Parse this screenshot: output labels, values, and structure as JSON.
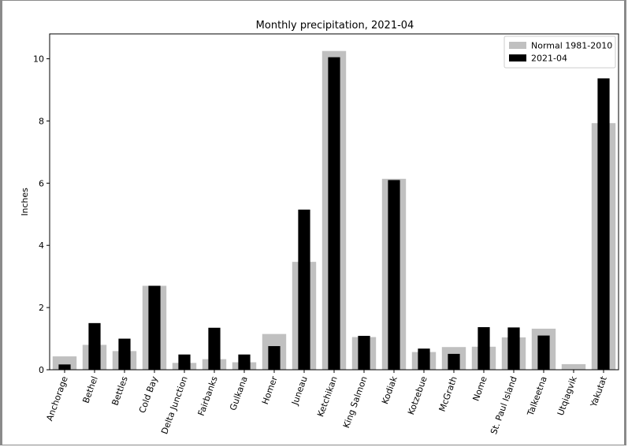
{
  "chart_data": {
    "type": "bar",
    "title": "Monthly precipitation, 2021-04",
    "ylabel": "Inches",
    "xlabel": "",
    "ylim": [
      0,
      10.8
    ],
    "yticks": [
      0,
      2,
      4,
      6,
      8,
      10
    ],
    "legend_position": "top-right",
    "grid": false,
    "categories": [
      "Anchorage",
      "Bethel",
      "Bettles",
      "Cold Bay",
      "Delta Junction",
      "Fairbanks",
      "Gulkana",
      "Homer",
      "Juneau",
      "Ketchikan",
      "King Salmon",
      "Kodiak",
      "Kotzebue",
      "McGrath",
      "Nome",
      "St. Paul Island",
      "Talkeetna",
      "Utqiagvik",
      "Yakutat"
    ],
    "series": [
      {
        "name": "Normal 1981-2010",
        "color": "#c0c0c0",
        "values": [
          0.43,
          0.8,
          0.6,
          2.7,
          0.22,
          0.34,
          0.24,
          1.15,
          3.47,
          10.25,
          1.05,
          6.14,
          0.57,
          0.73,
          0.74,
          1.04,
          1.32,
          0.18,
          7.93
        ]
      },
      {
        "name": "2021-04",
        "color": "#000000",
        "values": [
          0.17,
          1.5,
          1.0,
          2.7,
          0.49,
          1.35,
          0.49,
          0.76,
          5.15,
          10.05,
          1.09,
          6.1,
          0.68,
          0.51,
          1.37,
          1.36,
          1.1,
          0.0,
          9.37
        ]
      }
    ]
  }
}
